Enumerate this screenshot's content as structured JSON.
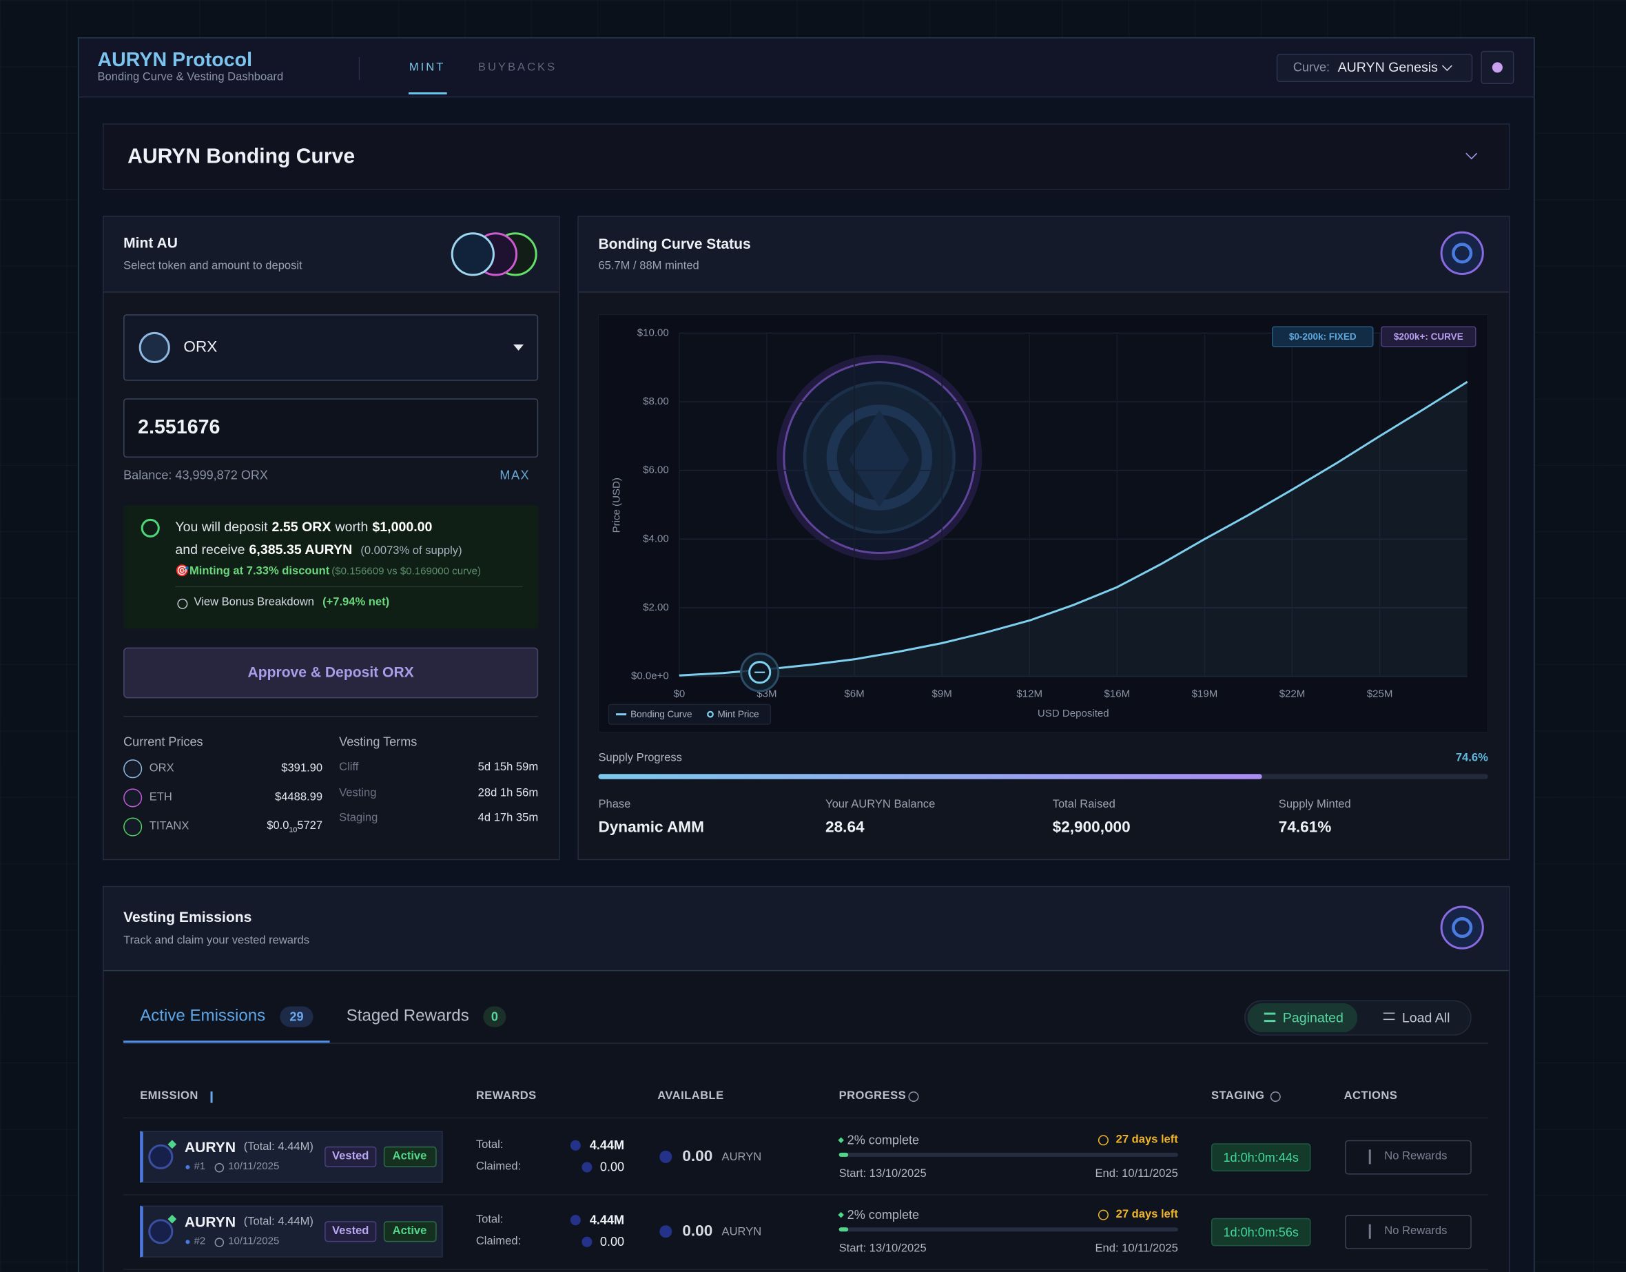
{
  "header": {
    "title": "AURYN Protocol",
    "subtitle": "Bonding Curve & Vesting Dashboard",
    "tabs": [
      "MINT",
      "BUYBACKS"
    ],
    "curve_label": "Curve:",
    "curve_value": "AURYN Genesis"
  },
  "section_title": "AURYN Bonding Curve",
  "mint": {
    "title": "Mint AU",
    "subtitle": "Select token and amount to deposit",
    "token": "ORX",
    "amount": "2.551676",
    "balance": "Balance: 43,999,872 ORX",
    "max": "MAX",
    "deposit": [
      "You will deposit",
      "2.55 ORX",
      "worth",
      "$1,000.00"
    ],
    "receive": [
      "and receive",
      "6,385.35 AURYN",
      "(0.0073% of supply)"
    ],
    "discount": [
      "🎯Minting at 7.33% discount",
      "($0.156609 vs $0.169000 curve)"
    ],
    "bonus": [
      "View Bonus Breakdown",
      "(+7.94% net)"
    ],
    "button": "Approve & Deposit ORX",
    "prices_title": "Current Prices",
    "prices": [
      {
        "token": "ORX",
        "price": "$391.90"
      },
      {
        "token": "ETH",
        "price": "$4488.99"
      },
      {
        "token": "TITANX",
        "price": "$0.0",
        "price_sub": "10",
        "price_tail": "5727"
      }
    ],
    "vesting_title": "Vesting Terms",
    "vesting": [
      {
        "label": "Cliff",
        "value": "5d 15h 59m"
      },
      {
        "label": "Vesting",
        "value": "28d 1h 56m"
      },
      {
        "label": "Staging",
        "value": "4d 17h 35m"
      }
    ]
  },
  "chart_data": {
    "type": "line",
    "title": "Bonding Curve Status",
    "subtitle": "65.7M / 88M minted",
    "x_label": "USD Deposited",
    "y_label": "Price (USD)",
    "badges": [
      "$0-200k: FIXED",
      "$200k+: CURVE"
    ],
    "x": [
      0,
      1550000,
      3100000,
      4650000,
      6200000,
      7750000,
      9300000,
      10850000,
      12400000,
      13950000,
      15500000,
      17050000,
      18600000,
      20150000,
      21700000,
      23250000,
      24800000,
      26350000,
      27900000
    ],
    "series": [
      {
        "name": "Bonding Curve",
        "color": "#7fd0ee",
        "values": [
          0.03,
          0.1,
          0.21,
          0.34,
          0.5,
          0.72,
          0.97,
          1.28,
          1.63,
          2.08,
          2.6,
          3.27,
          4.0,
          4.7,
          5.44,
          6.2,
          7.0,
          7.78,
          8.58
        ]
      },
      {
        "name": "Mint Price",
        "color": "#7fd0ee",
        "x": [
          2850000
        ],
        "values": [
          0.12
        ]
      }
    ],
    "xlim": [
      0,
      27900000
    ],
    "ylim": [
      0,
      10
    ],
    "xticks": [
      {
        "value": 0,
        "label": "$0"
      },
      {
        "value": 3100000,
        "label": "$3M"
      },
      {
        "value": 6200000,
        "label": "$6M"
      },
      {
        "value": 9300000,
        "label": "$9M"
      },
      {
        "value": 12400000,
        "label": "$12M"
      },
      {
        "value": 15500000,
        "label": "$16M"
      },
      {
        "value": 18600000,
        "label": "$19M"
      },
      {
        "value": 21700000,
        "label": "$22M"
      },
      {
        "value": 24800000,
        "label": "$25M"
      }
    ],
    "yticks": [
      {
        "value": 0,
        "label": "$0.0e+0"
      },
      {
        "value": 2,
        "label": "$2.00"
      },
      {
        "value": 4,
        "label": "$4.00"
      },
      {
        "value": 6,
        "label": "$6.00"
      },
      {
        "value": 8,
        "label": "$8.00"
      },
      {
        "value": 10,
        "label": "$10.00"
      }
    ],
    "grid": true,
    "legend": "bottom-left"
  },
  "supply": {
    "label": "Supply Progress",
    "value": 74.6,
    "value_label": "74.6%"
  },
  "stats": [
    {
      "label": "Phase",
      "value": "Dynamic AMM"
    },
    {
      "label": "Your AURYN Balance",
      "value": "28.64"
    },
    {
      "label": "Total Raised",
      "value": "$2,900,000"
    },
    {
      "label": "Supply Minted",
      "value": "74.61%"
    }
  ],
  "emissions": {
    "title": "Vesting Emissions",
    "subtitle": "Track and claim your vested rewards",
    "tabs": [
      {
        "label": "Active Emissions",
        "count": 29
      },
      {
        "label": "Staged Rewards",
        "count": 0
      }
    ],
    "view_buttons": [
      "Paginated",
      "Load All"
    ],
    "columns": [
      "EMISSION",
      "REWARDS",
      "AVAILABLE",
      "PROGRESS",
      "STAGING",
      "ACTIONS"
    ],
    "rows": [
      {
        "token": "AURYN",
        "total": "(Total: 4.44M)",
        "badges": [
          "Vested",
          "Active"
        ],
        "id": "#1",
        "date": "10/11/2025",
        "rewards_total_label": "Total:",
        "rewards_total": "4.44M",
        "claimed_label": "Claimed:",
        "claimed": "0.00",
        "available": "0.00",
        "available_unit": "AURYN",
        "progress": 2,
        "progress_label": "2% complete",
        "days_left": "27 days left",
        "start": "Start: 13/10/2025",
        "end": "End: 10/11/2025",
        "staging": "1d:0h:0m:44s",
        "action": "No Rewards"
      },
      {
        "token": "AURYN",
        "total": "(Total: 4.44M)",
        "badges": [
          "Vested",
          "Active"
        ],
        "id": "#2",
        "date": "10/11/2025",
        "rewards_total_label": "Total:",
        "rewards_total": "4.44M",
        "claimed_label": "Claimed:",
        "claimed": "0.00",
        "available": "0.00",
        "available_unit": "AURYN",
        "progress": 2,
        "progress_label": "2% complete",
        "days_left": "27 days left",
        "start": "Start: 13/10/2025",
        "end": "End: 10/11/2025",
        "staging": "1d:0h:0m:56s",
        "action": "No Rewards"
      }
    ]
  }
}
